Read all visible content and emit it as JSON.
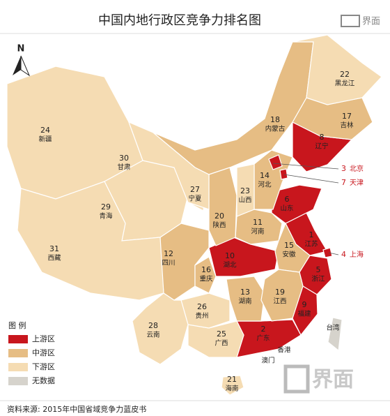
{
  "title": "中国内地行政区竞争力排名图",
  "logo": "界面",
  "north": "N",
  "provinces": [
    {
      "rank": 1,
      "name": "江苏",
      "color": "#c8161d"
    },
    {
      "rank": 2,
      "name": "广东",
      "color": "#c8161d"
    },
    {
      "rank": 3,
      "name": "北京",
      "color": "#c8161d"
    },
    {
      "rank": 4,
      "name": "上海",
      "color": "#c8161d"
    },
    {
      "rank": 5,
      "name": "浙江",
      "color": "#c8161d"
    },
    {
      "rank": 6,
      "name": "山东",
      "color": "#c8161d"
    },
    {
      "rank": 7,
      "name": "天津",
      "color": "#c8161d"
    },
    {
      "rank": 8,
      "name": "辽宁",
      "color": "#c8161d"
    },
    {
      "rank": 9,
      "name": "福建",
      "color": "#c8161d"
    },
    {
      "rank": 10,
      "name": "湖北",
      "color": "#c8161d"
    },
    {
      "rank": 11,
      "name": "河南",
      "color": "#e6bd84"
    },
    {
      "rank": 12,
      "name": "四川",
      "color": "#e6bd84"
    },
    {
      "rank": 13,
      "name": "湖南",
      "color": "#e6bd84"
    },
    {
      "rank": 14,
      "name": "河北",
      "color": "#e6bd84"
    },
    {
      "rank": 15,
      "name": "安徽",
      "color": "#e6bd84"
    },
    {
      "rank": 16,
      "name": "重庆",
      "color": "#e6bd84"
    },
    {
      "rank": 17,
      "name": "吉林",
      "color": "#e6bd84"
    },
    {
      "rank": 18,
      "name": "内蒙古",
      "color": "#e6bd84"
    },
    {
      "rank": 19,
      "name": "江西",
      "color": "#e6bd84"
    },
    {
      "rank": 20,
      "name": "陕西",
      "color": "#e6bd84"
    },
    {
      "rank": 21,
      "name": "海南",
      "color": "#f5dcb3"
    },
    {
      "rank": 22,
      "name": "黑龙江",
      "color": "#f5dcb3"
    },
    {
      "rank": 23,
      "name": "山西",
      "color": "#f5dcb3"
    },
    {
      "rank": 24,
      "name": "新疆",
      "color": "#f5dcb3"
    },
    {
      "rank": 25,
      "name": "广西",
      "color": "#f5dcb3"
    },
    {
      "rank": 26,
      "name": "贵州",
      "color": "#f5dcb3"
    },
    {
      "rank": 27,
      "name": "宁夏",
      "color": "#f5dcb3"
    },
    {
      "rank": 28,
      "name": "云南",
      "color": "#f5dcb3"
    },
    {
      "rank": 29,
      "name": "青海",
      "color": "#f5dcb3"
    },
    {
      "rank": 30,
      "name": "甘肃",
      "color": "#f5dcb3"
    },
    {
      "rank": 31,
      "name": "西藏",
      "color": "#f5dcb3"
    }
  ],
  "other_regions": [
    {
      "name": "台湾",
      "color": "#d6d3cc"
    },
    {
      "name": "香港"
    },
    {
      "name": "澳门"
    }
  ],
  "legend": {
    "title": "图 例",
    "items": [
      {
        "label": "上游区",
        "color": "#c8161d"
      },
      {
        "label": "中游区",
        "color": "#e6bd84"
      },
      {
        "label": "下游区",
        "color": "#f5dcb3"
      },
      {
        "label": "无数据",
        "color": "#d6d3cc"
      }
    ]
  },
  "source": "资料来源: 2015年中国省域竞争力蓝皮书",
  "watermark": "界面"
}
